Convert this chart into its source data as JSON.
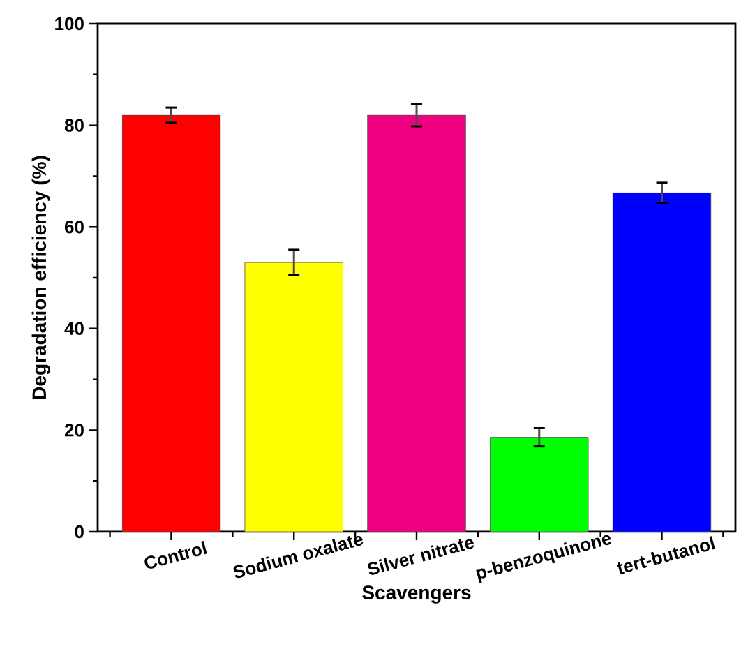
{
  "chart_data": {
    "type": "bar",
    "xlabel": "Scavengers",
    "ylabel": "Degradation efficiency (%)",
    "categories": [
      "Control",
      "Sodium oxalate",
      "Silver nitrate",
      "p-benzoquinone",
      "tert-butanol"
    ],
    "values": [
      82,
      53,
      82,
      18.6,
      66.7
    ],
    "colors": [
      "#ff0000",
      "#ffff00",
      "#ee0080",
      "#00ff00",
      "#0000ff"
    ],
    "errors": [
      1.5,
      2.5,
      2.2,
      1.8,
      2
    ],
    "ylim": [
      0,
      100
    ],
    "yticks": [
      0,
      20,
      40,
      60,
      80,
      100
    ]
  }
}
